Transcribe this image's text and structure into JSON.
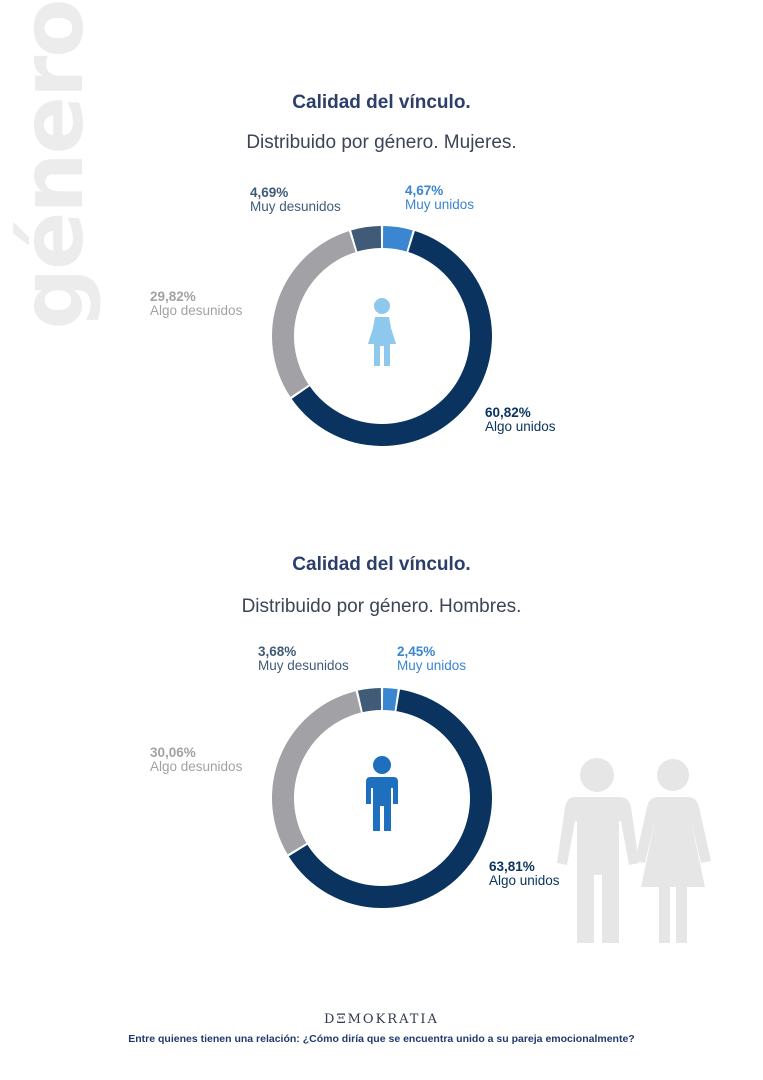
{
  "side_text": "género",
  "colors": {
    "muy_unidos": "#3a86d0",
    "algo_unidos": "#0b3360",
    "algo_desunidos": "#a2a2a6",
    "muy_desunidos": "#3f5b78",
    "women_icon": "#8ec8ec",
    "men_icon": "#1f6fbf",
    "couple_icon": "#e6e6e6"
  },
  "icons": [
    "woman-icon",
    "man-icon",
    "couple-silhouette-icon"
  ],
  "chart_data": [
    {
      "type": "pie",
      "title": "Calidad del vínculo.",
      "subtitle": "Distribuido por género. Mujeres.",
      "categories": [
        "Muy unidos",
        "Algo unidos",
        "Algo desunidos",
        "Muy desunidos"
      ],
      "values": [
        4.67,
        60.82,
        29.82,
        4.69
      ],
      "value_labels": [
        "4,67%",
        "60,82%",
        "29,82%",
        "4,69%"
      ],
      "style": "donut"
    },
    {
      "type": "pie",
      "title": "Calidad del vínculo.",
      "subtitle": "Distribuido por género. Hombres.",
      "categories": [
        "Muy unidos",
        "Algo unidos",
        "Algo desunidos",
        "Muy desunidos"
      ],
      "values": [
        2.45,
        63.81,
        30.06,
        3.68
      ],
      "value_labels": [
        "2,45%",
        "63,81%",
        "30,06%",
        "3,68%"
      ],
      "style": "donut"
    }
  ],
  "footer": {
    "brand": "DΞMOKRATIA",
    "question": "Entre quienes tienen una relación: ¿Cómo diría que se encuentra unido a su pareja emocionalmente?"
  }
}
